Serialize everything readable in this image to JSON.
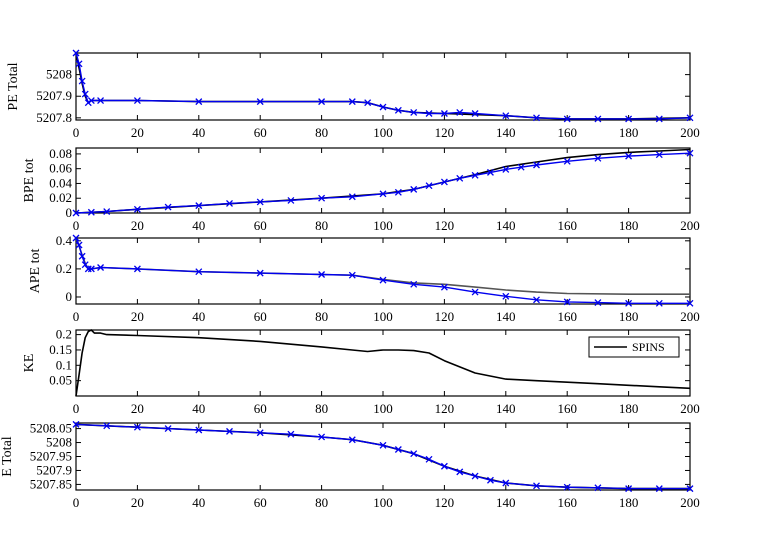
{
  "chart_data": [
    {
      "type": "line",
      "ylabel": "PE Total",
      "xlim": [
        0,
        200
      ],
      "ylim": [
        5207.79,
        5208.1
      ],
      "xticks": [
        0,
        20,
        40,
        60,
        80,
        100,
        120,
        140,
        160,
        180,
        200
      ],
      "xtick_labels": [
        "0",
        "20",
        "40",
        "60",
        "80",
        "100",
        "120",
        "140",
        "160",
        "180",
        "200"
      ],
      "yticks": [
        5207.8,
        5207.9,
        5208
      ],
      "ytick_labels": [
        "5207.8",
        "5207.9",
        "5208"
      ],
      "series": [
        {
          "style": "solid",
          "color": "#000000",
          "x": [
            0,
            1,
            2,
            3,
            4,
            5,
            8,
            20,
            40,
            60,
            80,
            90,
            95,
            100,
            105,
            110,
            120,
            130,
            140,
            150,
            160,
            180,
            200
          ],
          "y": [
            5208.1,
            5208.03,
            5207.96,
            5207.9,
            5207.87,
            5207.88,
            5207.88,
            5207.88,
            5207.875,
            5207.875,
            5207.875,
            5207.875,
            5207.87,
            5207.85,
            5207.835,
            5207.825,
            5207.82,
            5207.815,
            5207.81,
            5207.8,
            5207.795,
            5207.795,
            5207.8
          ]
        },
        {
          "style": "markers",
          "marker": "x",
          "color": "#0000ee",
          "x": [
            0,
            1,
            2,
            3,
            4,
            5,
            8,
            20,
            40,
            60,
            80,
            90,
            95,
            100,
            105,
            110,
            115,
            120,
            125,
            130,
            140,
            150,
            160,
            170,
            180,
            190,
            200
          ],
          "y": [
            5208.1,
            5208.05,
            5207.97,
            5207.91,
            5207.87,
            5207.88,
            5207.88,
            5207.88,
            5207.875,
            5207.875,
            5207.875,
            5207.875,
            5207.87,
            5207.85,
            5207.835,
            5207.825,
            5207.82,
            5207.82,
            5207.825,
            5207.82,
            5207.81,
            5207.8,
            5207.795,
            5207.795,
            5207.795,
            5207.795,
            5207.8
          ]
        }
      ]
    },
    {
      "type": "line",
      "ylabel": "BPE tot",
      "xlim": [
        0,
        200
      ],
      "ylim": [
        0,
        0.088
      ],
      "xticks": [
        0,
        20,
        40,
        60,
        80,
        100,
        120,
        140,
        160,
        180,
        200
      ],
      "xtick_labels": [
        "0",
        "20",
        "40",
        "60",
        "80",
        "100",
        "120",
        "140",
        "160",
        "180",
        "200"
      ],
      "yticks": [
        0,
        0.02,
        0.04,
        0.06,
        0.08
      ],
      "ytick_labels": [
        "0",
        "0.02",
        "0.04",
        "0.06",
        "0.08"
      ],
      "series": [
        {
          "style": "solid",
          "color": "#000000",
          "x": [
            0,
            10,
            20,
            40,
            60,
            80,
            100,
            110,
            120,
            130,
            140,
            150,
            160,
            170,
            180,
            190,
            200
          ],
          "y": [
            0,
            0.002,
            0.005,
            0.01,
            0.015,
            0.02,
            0.026,
            0.032,
            0.042,
            0.052,
            0.063,
            0.069,
            0.075,
            0.079,
            0.082,
            0.084,
            0.086
          ]
        },
        {
          "style": "markers",
          "marker": "x",
          "color": "#0000ee",
          "x": [
            0,
            5,
            10,
            20,
            30,
            40,
            50,
            60,
            70,
            80,
            90,
            100,
            105,
            110,
            115,
            120,
            125,
            130,
            135,
            140,
            145,
            150,
            160,
            170,
            180,
            190,
            200
          ],
          "y": [
            0,
            0.001,
            0.002,
            0.005,
            0.008,
            0.01,
            0.013,
            0.015,
            0.017,
            0.02,
            0.022,
            0.026,
            0.028,
            0.032,
            0.037,
            0.042,
            0.047,
            0.051,
            0.055,
            0.059,
            0.062,
            0.065,
            0.07,
            0.074,
            0.077,
            0.079,
            0.081
          ]
        }
      ]
    },
    {
      "type": "line",
      "ylabel": "APE tot",
      "xlim": [
        0,
        200
      ],
      "ylim": [
        -0.05,
        0.42
      ],
      "xticks": [
        0,
        20,
        40,
        60,
        80,
        100,
        120,
        140,
        160,
        180,
        200
      ],
      "xtick_labels": [
        "0",
        "20",
        "40",
        "60",
        "80",
        "100",
        "120",
        "140",
        "160",
        "180",
        "200"
      ],
      "yticks": [
        0,
        0.2,
        0.4
      ],
      "ytick_labels": [
        "0",
        "0.2",
        "0.4"
      ],
      "series": [
        {
          "style": "solid",
          "color": "#555555",
          "x": [
            0,
            1,
            2,
            3,
            4,
            5,
            8,
            20,
            40,
            60,
            80,
            90,
            100,
            110,
            120,
            130,
            140,
            150,
            160,
            180,
            200
          ],
          "y": [
            0.42,
            0.36,
            0.3,
            0.24,
            0.2,
            0.2,
            0.21,
            0.2,
            0.18,
            0.17,
            0.16,
            0.155,
            0.125,
            0.1,
            0.09,
            0.07,
            0.05,
            0.035,
            0.025,
            0.02,
            0.02
          ]
        },
        {
          "style": "markers",
          "marker": "x",
          "color": "#0000ee",
          "x": [
            0,
            1,
            2,
            3,
            4,
            5,
            8,
            20,
            40,
            60,
            80,
            90,
            100,
            110,
            120,
            130,
            140,
            150,
            160,
            170,
            180,
            190,
            200
          ],
          "y": [
            0.42,
            0.37,
            0.29,
            0.23,
            0.2,
            0.2,
            0.21,
            0.2,
            0.18,
            0.17,
            0.16,
            0.155,
            0.12,
            0.09,
            0.07,
            0.035,
            0.005,
            -0.02,
            -0.035,
            -0.04,
            -0.045,
            -0.045,
            -0.045
          ]
        }
      ]
    },
    {
      "type": "line",
      "ylabel": "KE",
      "xlim": [
        0,
        200
      ],
      "ylim": [
        0,
        0.215
      ],
      "xticks": [
        0,
        20,
        40,
        60,
        80,
        100,
        120,
        140,
        160,
        180,
        200
      ],
      "xtick_labels": [
        "0",
        "20",
        "40",
        "60",
        "80",
        "100",
        "120",
        "140",
        "160",
        "180",
        "200"
      ],
      "yticks": [
        0.05,
        0.1,
        0.15,
        0.2
      ],
      "ytick_labels": [
        "0.05",
        "0.1",
        "0.15",
        "0.2"
      ],
      "legend": {
        "position": "top-right",
        "entries": [
          "SPINS"
        ]
      },
      "series": [
        {
          "name": "SPINS",
          "style": "solid",
          "color": "#000000",
          "x": [
            0,
            1,
            2,
            3,
            4,
            5,
            6,
            8,
            10,
            20,
            40,
            60,
            80,
            90,
            95,
            100,
            105,
            110,
            115,
            120,
            130,
            140,
            150,
            160,
            170,
            180,
            190,
            200
          ],
          "y": [
            0.0,
            0.07,
            0.14,
            0.19,
            0.21,
            0.215,
            0.205,
            0.205,
            0.2,
            0.197,
            0.19,
            0.178,
            0.16,
            0.15,
            0.145,
            0.15,
            0.15,
            0.148,
            0.14,
            0.115,
            0.075,
            0.055,
            0.05,
            0.045,
            0.04,
            0.035,
            0.03,
            0.025
          ]
        }
      ]
    },
    {
      "type": "line",
      "ylabel": "E Total",
      "xlim": [
        0,
        200
      ],
      "ylim": [
        5207.83,
        5208.07
      ],
      "xticks": [
        0,
        20,
        40,
        60,
        80,
        100,
        120,
        140,
        160,
        180,
        200
      ],
      "xtick_labels": [
        "0",
        "20",
        "40",
        "60",
        "80",
        "100",
        "120",
        "140",
        "160",
        "180",
        "200"
      ],
      "yticks": [
        5207.85,
        5207.9,
        5207.95,
        5208,
        5208.05
      ],
      "ytick_labels": [
        "5207.85",
        "5207.9",
        "5207.95",
        "5208",
        "5208.05"
      ],
      "series": [
        {
          "style": "solid",
          "color": "#000000",
          "x": [
            0,
            20,
            40,
            60,
            80,
            90,
            100,
            110,
            120,
            130,
            140,
            150,
            160,
            180,
            200
          ],
          "y": [
            5208.065,
            5208.055,
            5208.045,
            5208.035,
            5208.02,
            5208.01,
            5207.99,
            5207.96,
            5207.915,
            5207.88,
            5207.855,
            5207.845,
            5207.84,
            5207.835,
            5207.835
          ]
        },
        {
          "style": "markers",
          "marker": "x",
          "color": "#0000ee",
          "x": [
            0,
            10,
            20,
            30,
            40,
            50,
            60,
            70,
            80,
            90,
            100,
            105,
            110,
            115,
            120,
            125,
            130,
            135,
            140,
            150,
            160,
            170,
            180,
            190,
            200
          ],
          "y": [
            5208.065,
            5208.06,
            5208.055,
            5208.05,
            5208.045,
            5208.04,
            5208.035,
            5208.03,
            5208.02,
            5208.01,
            5207.99,
            5207.975,
            5207.96,
            5207.94,
            5207.915,
            5207.895,
            5207.88,
            5207.865,
            5207.855,
            5207.845,
            5207.84,
            5207.838,
            5207.835,
            5207.835,
            5207.835
          ]
        }
      ]
    }
  ]
}
